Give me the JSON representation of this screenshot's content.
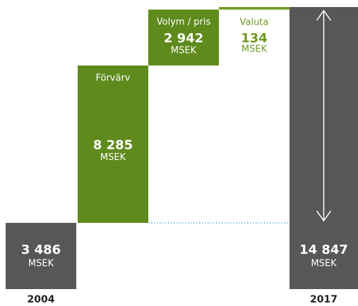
{
  "chart_data": {
    "type": "waterfall",
    "categories": [
      "2004",
      "Förvärv",
      "Volym / pris",
      "Valuta",
      "2017"
    ],
    "measures": [
      "absolute",
      "relative",
      "relative",
      "relative",
      "total"
    ],
    "values": [
      3486,
      8285,
      2942,
      134,
      14847
    ],
    "value_labels": [
      "3 486",
      "8 285",
      "2 942",
      "134",
      "14 847"
    ],
    "unit": "MSEK",
    "colors": [
      "#575757",
      "#5f8a1c",
      "#5f8a1c",
      "#6f9a22",
      "#575757"
    ]
  }
}
